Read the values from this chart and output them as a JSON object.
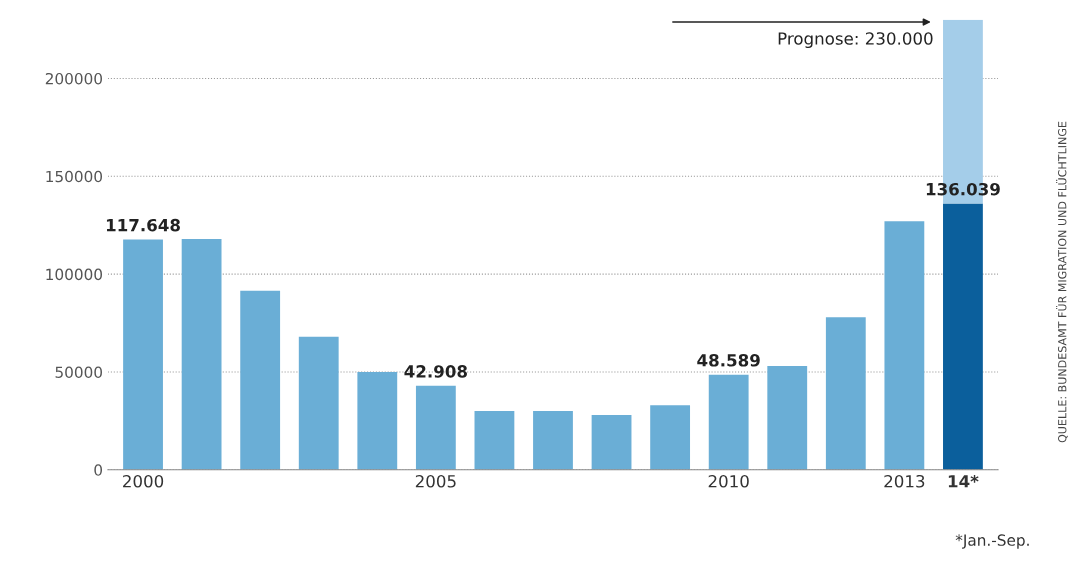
{
  "chart_data": {
    "type": "bar",
    "stacked": true,
    "categories": [
      "2000",
      null,
      null,
      null,
      null,
      "2005",
      null,
      null,
      null,
      null,
      "2010",
      null,
      null,
      "2013",
      "14*"
    ],
    "series": [
      {
        "colors": [
          "#6aaed6",
          "#6aaed6",
          "#6aaed6",
          "#6aaed6",
          "#6aaed6",
          "#6aaed6",
          "#6aaed6",
          "#6aaed6",
          "#6aaed6",
          "#6aaed6",
          "#6aaed6",
          "#6aaed6",
          "#6aaed6",
          "#6aaed6",
          "#0b5f9c"
        ],
        "values": [
          117648,
          118000,
          91500,
          68000,
          50000,
          42908,
          30000,
          30000,
          28000,
          33000,
          48589,
          53000,
          78000,
          127000,
          136039
        ],
        "value_labels": [
          "117.648",
          null,
          null,
          null,
          null,
          "42.908",
          null,
          null,
          null,
          null,
          "48.589",
          null,
          null,
          null,
          "136.039"
        ]
      },
      {
        "color": "#a4cde9",
        "values": [
          null,
          null,
          null,
          null,
          null,
          null,
          null,
          null,
          null,
          null,
          null,
          null,
          null,
          null,
          93961
        ]
      }
    ],
    "ylim": [
      0,
      230000
    ],
    "yticks": [
      0,
      50000,
      100000,
      150000,
      200000
    ],
    "grid": "y",
    "annotations": [
      {
        "text": "Prognose: 230.000",
        "x": "14*",
        "y": 230000
      },
      "QUELLE: BUNDESAMT FÜR MIGRATION UND FLÜCHTLINGE",
      "*Jan.-Sep."
    ]
  }
}
